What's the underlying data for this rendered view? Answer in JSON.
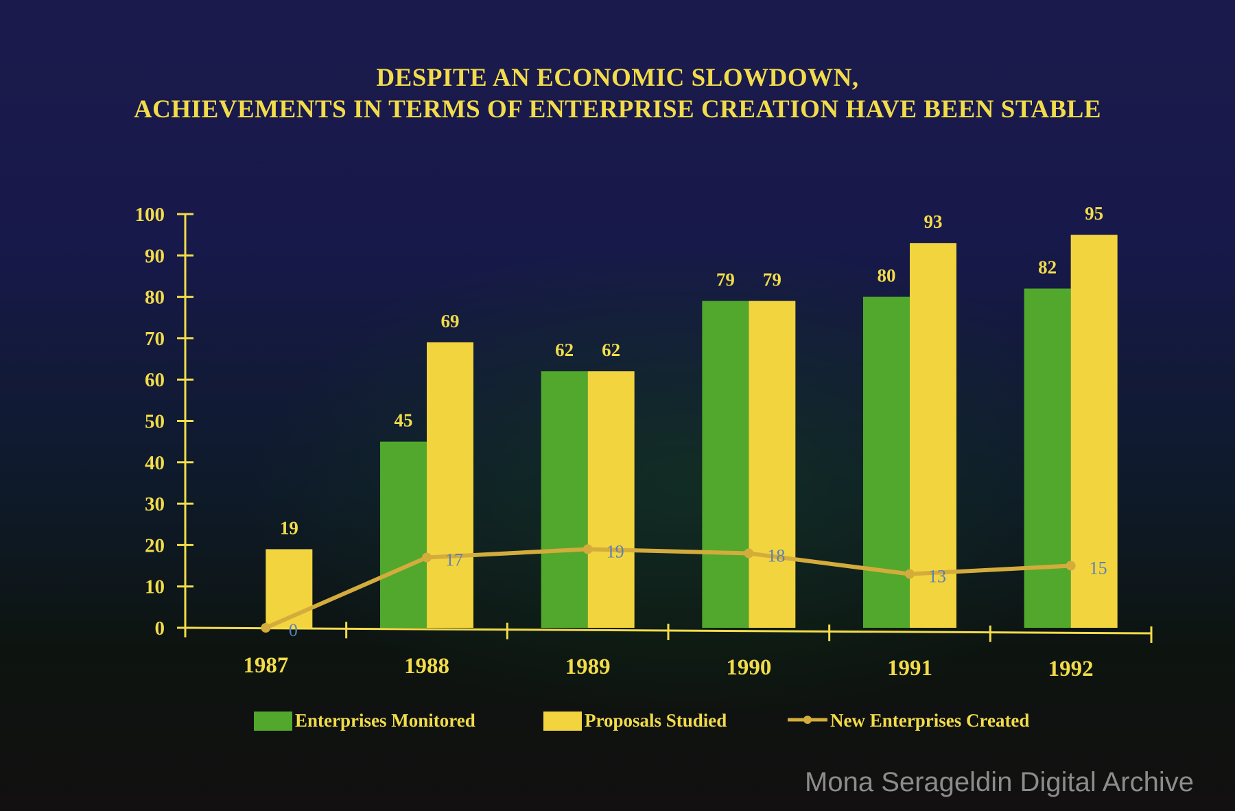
{
  "chart_data": {
    "type": "bar",
    "title": [
      "DESPITE AN ECONOMIC SLOWDOWN,",
      "ACHIEVEMENTS  IN TERMS OF ENTERPRISE CREATION HAVE BEEN STABLE"
    ],
    "xlabel": "",
    "ylabel": "",
    "categories": [
      "1987",
      "1988",
      "1989",
      "1990",
      "1991",
      "1992"
    ],
    "ylim": [
      0,
      100
    ],
    "yticks": [
      0,
      10,
      20,
      30,
      40,
      50,
      60,
      70,
      80,
      90,
      100
    ],
    "grid": false,
    "legend_position": "bottom",
    "series": [
      {
        "name": "Enterprises Monitored",
        "type": "bar",
        "color": "#52a82c",
        "values": [
          null,
          45,
          62,
          79,
          80,
          82
        ]
      },
      {
        "name": "Proposals Studied",
        "type": "bar",
        "color": "#f2d43e",
        "values": [
          19,
          69,
          62,
          79,
          93,
          95
        ]
      },
      {
        "name": "New Enterprises Created",
        "type": "line",
        "color": "#d4ac3c",
        "label_color": "#5a7fb8",
        "values": [
          0,
          17,
          19,
          18,
          13,
          15
        ]
      }
    ]
  },
  "watermark": "Mona Serageldin Digital Archive"
}
